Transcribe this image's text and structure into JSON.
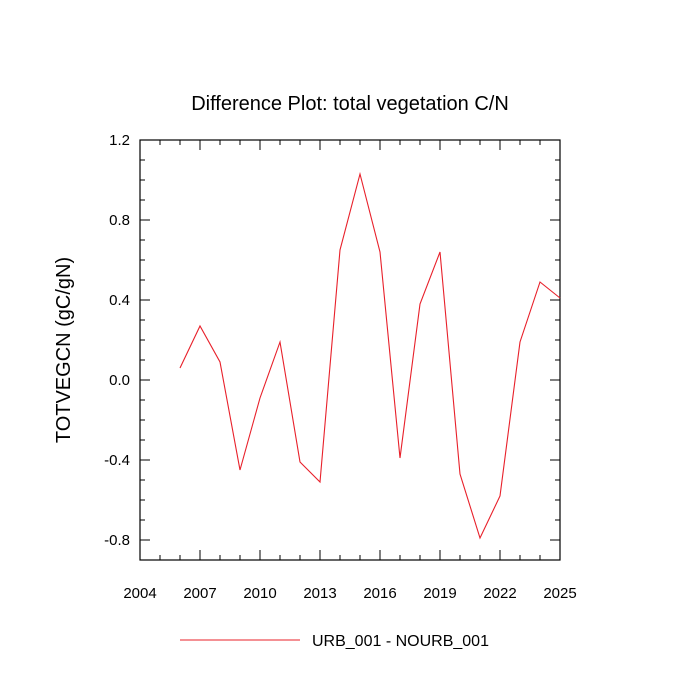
{
  "chart_data": {
    "type": "line",
    "title": "Difference Plot: total vegetation C/N",
    "xlabel": "",
    "ylabel": "TOTVEGCN  (gC/gN)",
    "xlim": [
      2004,
      2025
    ],
    "ylim": [
      -0.9,
      1.2
    ],
    "x_ticks": [
      2004,
      2007,
      2010,
      2013,
      2016,
      2019,
      2022,
      2025
    ],
    "y_ticks": [
      -0.8,
      -0.4,
      0.0,
      0.4,
      0.8,
      1.2
    ],
    "y_tick_labels": [
      "-0.8",
      "-0.4",
      "0.0",
      "0.4",
      "0.8",
      "1.2"
    ],
    "grid": false,
    "legend_position": "bottom",
    "series": [
      {
        "name": "URB_001 - NOURB_001",
        "color": "#e8202a",
        "x": [
          2006,
          2007,
          2008,
          2009,
          2010,
          2011,
          2012,
          2013,
          2014,
          2015,
          2016,
          2017,
          2018,
          2019,
          2020,
          2021,
          2022,
          2023,
          2024,
          2025
        ],
        "values": [
          0.06,
          0.27,
          0.09,
          -0.45,
          -0.09,
          0.19,
          -0.41,
          -0.51,
          0.65,
          1.03,
          0.64,
          -0.39,
          0.38,
          0.64,
          -0.47,
          -0.79,
          -0.58,
          0.19,
          0.49,
          0.41
        ]
      }
    ]
  }
}
